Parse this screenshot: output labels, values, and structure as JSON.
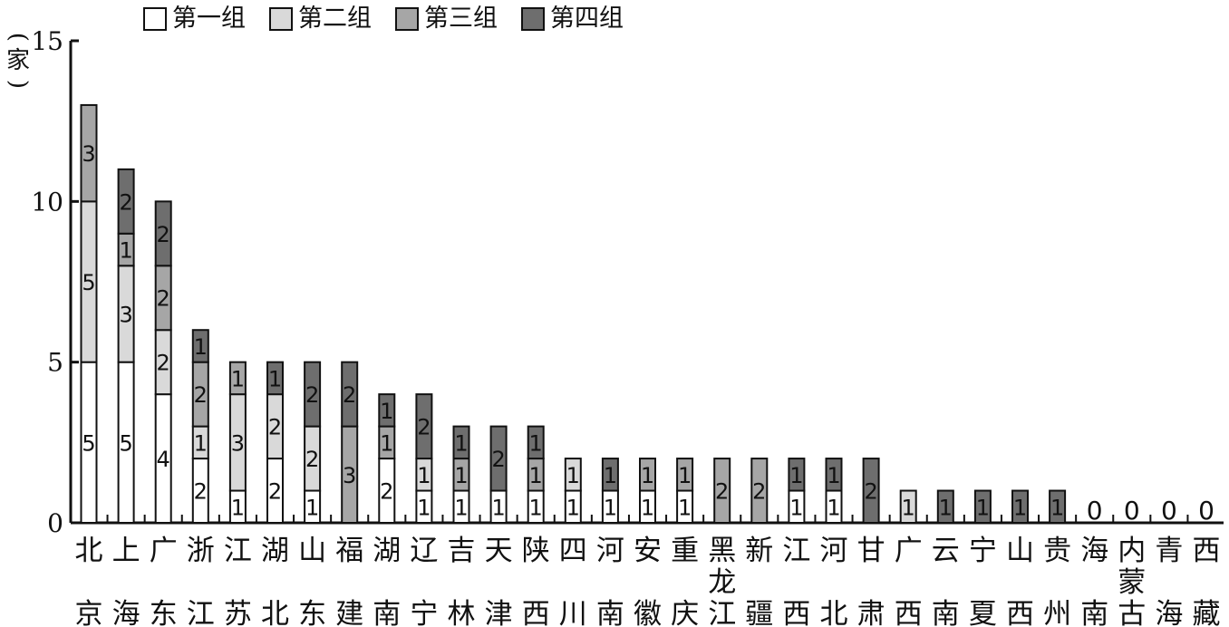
{
  "chart_data": {
    "type": "bar",
    "stacked": true,
    "ylabel_chars": [
      "(",
      "家",
      ")"
    ],
    "ylim": [
      0,
      15
    ],
    "yticks": [
      0,
      5,
      10,
      15
    ],
    "legend_position": "top",
    "series": [
      {
        "name": "第一组",
        "color": "#ffffff",
        "values": [
          5,
          5,
          4,
          2,
          1,
          2,
          1,
          0,
          2,
          1,
          1,
          1,
          1,
          1,
          1,
          1,
          1,
          0,
          0,
          1,
          1,
          0,
          0,
          0,
          0,
          0,
          0,
          0,
          0,
          0,
          0
        ]
      },
      {
        "name": "第二组",
        "color": "#d9d9d9",
        "values": [
          5,
          3,
          2,
          1,
          3,
          2,
          2,
          0,
          0,
          1,
          0,
          0,
          0,
          1,
          0,
          0,
          0,
          0,
          0,
          0,
          0,
          0,
          1,
          0,
          0,
          0,
          0,
          0,
          0,
          0,
          0
        ]
      },
      {
        "name": "第三组",
        "color": "#a6a6a6",
        "values": [
          3,
          1,
          2,
          2,
          1,
          0,
          0,
          3,
          1,
          0,
          1,
          0,
          1,
          0,
          0,
          1,
          1,
          2,
          2,
          0,
          0,
          0,
          0,
          0,
          0,
          0,
          0,
          0,
          0,
          0,
          0
        ]
      },
      {
        "name": "第四组",
        "color": "#6e6e6e",
        "values": [
          0,
          2,
          2,
          1,
          0,
          1,
          2,
          2,
          1,
          2,
          1,
          2,
          1,
          0,
          1,
          0,
          0,
          0,
          0,
          1,
          1,
          2,
          0,
          1,
          1,
          1,
          1,
          0,
          0,
          0,
          0
        ]
      }
    ],
    "categories": [
      [
        "北",
        "京"
      ],
      [
        "上",
        "海"
      ],
      [
        "广",
        "东"
      ],
      [
        "浙",
        "江"
      ],
      [
        "江",
        "苏"
      ],
      [
        "湖",
        "北"
      ],
      [
        "山",
        "东"
      ],
      [
        "福",
        "建"
      ],
      [
        "湖",
        "南"
      ],
      [
        "辽",
        "宁"
      ],
      [
        "吉",
        "林"
      ],
      [
        "天",
        "津"
      ],
      [
        "陕",
        "西"
      ],
      [
        "四",
        "川"
      ],
      [
        "河",
        "南"
      ],
      [
        "安",
        "徽"
      ],
      [
        "重",
        "庆"
      ],
      [
        "黑",
        "龙",
        "江"
      ],
      [
        "新",
        "疆"
      ],
      [
        "江",
        "西"
      ],
      [
        "河",
        "北"
      ],
      [
        "甘",
        "肃"
      ],
      [
        "广",
        "西"
      ],
      [
        "云",
        "南"
      ],
      [
        "宁",
        "夏"
      ],
      [
        "山",
        "西"
      ],
      [
        "贵",
        "州"
      ],
      [
        "海",
        "南"
      ],
      [
        "内",
        "蒙",
        "古"
      ],
      [
        "青",
        "海"
      ],
      [
        "西",
        "藏"
      ]
    ],
    "zero_labels": [
      27,
      28,
      29,
      30
    ]
  },
  "zero_text": "0"
}
